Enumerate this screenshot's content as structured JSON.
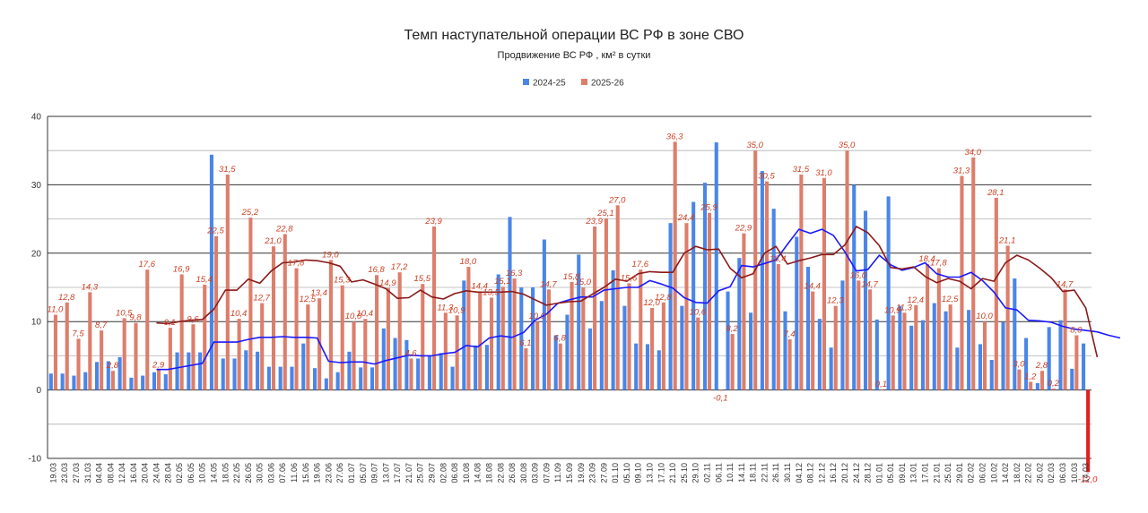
{
  "chart_data": {
    "type": "bar",
    "title": "Темп наступательной операции ВС РФ в зоне СВО",
    "subtitle": "Продвижение ВС РФ , км² в сутки",
    "ylim": [
      -10,
      40
    ],
    "yticks": [
      -10,
      0,
      10,
      20,
      30,
      40
    ],
    "grid": true,
    "legend_position": "top-center",
    "colors": {
      "series1": "#4a86e8",
      "series2": "#dd7e6b",
      "ma1": "#1a1aff",
      "ma2": "#8b1a1a",
      "negative": "#e02020"
    },
    "categories": [
      "19.03",
      "23.03",
      "27.03",
      "31.03",
      "04.04",
      "08.04",
      "12.04",
      "16.04",
      "20.04",
      "24.04",
      "28.04",
      "02.05",
      "06.05",
      "10.05",
      "14.05",
      "18.05",
      "22.05",
      "26.05",
      "30.05",
      "03.06",
      "07.06",
      "11.06",
      "15.06",
      "19.06",
      "23.06",
      "27.06",
      "01.07",
      "05.07",
      "09.07",
      "13.07",
      "17.07",
      "21.07",
      "25.07",
      "29.07",
      "02.08",
      "06.08",
      "10.08",
      "14.08",
      "18.08",
      "22.08",
      "26.08",
      "30.08",
      "03.09",
      "07.09",
      "11.09",
      "15.09",
      "19.09",
      "23.09",
      "27.09",
      "01.10",
      "05.10",
      "09.10",
      "13.10",
      "17.10",
      "21.10",
      "25.10",
      "29.10",
      "02.11",
      "06.11",
      "10.11",
      "14.11",
      "18.11",
      "22.11",
      "26.11",
      "30.11",
      "04.12",
      "08.12",
      "12.12",
      "16.12",
      "20.12",
      "24.12",
      "28.12",
      "01.01",
      "05.01",
      "09.01",
      "13.01",
      "17.01",
      "21.01",
      "25.01",
      "29.01",
      "02.02",
      "06.02",
      "10.02",
      "14.02",
      "18.02",
      "22.02",
      "26.02",
      "02.03",
      "06.03",
      "10.03",
      "14.03"
    ],
    "series": [
      {
        "name": "2024-25",
        "values": [
          2.4,
          2.4,
          2.1,
          2.6,
          4.1,
          4.2,
          4.8,
          1.8,
          2.1,
          2.6,
          2.3,
          5.5,
          5.5,
          5.5,
          34.4,
          4.6,
          4.6,
          5.8,
          5.6,
          3.4,
          3.4,
          3.4,
          6.8,
          3.2,
          1.7,
          2.6,
          5.6,
          3.3,
          3.3,
          9.0,
          7.6,
          7.3,
          4.6,
          5.0,
          5.4,
          3.4,
          16.0,
          6.5,
          6.6,
          16.9,
          25.3,
          15.0,
          15.0,
          22.0,
          8.0,
          11.0,
          19.8,
          9.0,
          13.0,
          17.5,
          12.3,
          6.8,
          6.7,
          5.8,
          24.4,
          12.3,
          27.5,
          30.3,
          36.2,
          14.4,
          19.3,
          11.3,
          32.0,
          26.5,
          11.5,
          22.4,
          18.0,
          10.4,
          6.2,
          16.0,
          30.0,
          26.2,
          10.3,
          28.3,
          12.3,
          9.4,
          10.2,
          12.7,
          11.5,
          6.2,
          11.7,
          6.7,
          4.4,
          9.9,
          16.3,
          7.6,
          1.0,
          9.2,
          10.2,
          3.1,
          6.8
        ]
      },
      {
        "name": "2025-26",
        "values": [
          11.0,
          12.8,
          7.5,
          14.3,
          8.7,
          2.8,
          10.5,
          9.8,
          17.6,
          2.9,
          9.1,
          16.9,
          9.6,
          15.4,
          22.5,
          31.5,
          10.4,
          25.2,
          12.7,
          21.0,
          22.8,
          17.8,
          12.5,
          13.4,
          19.0,
          15.3,
          10.0,
          10.4,
          16.8,
          14.9,
          17.2,
          4.6,
          15.5,
          23.9,
          11.3,
          10.9,
          18.0,
          14.4,
          13.5,
          15.1,
          16.3,
          6.1,
          10.0,
          14.7,
          6.8,
          15.8,
          15.0,
          23.9,
          25.1,
          27.0,
          15.6,
          17.6,
          12.0,
          12.8,
          36.3,
          24.4,
          10.6,
          25.9,
          -0.1,
          8.2,
          22.9,
          35.0,
          30.5,
          18.4,
          7.4,
          31.5,
          14.4,
          31.0,
          12.3,
          35.0,
          16.0,
          14.7,
          0.1,
          10.9,
          11.3,
          12.4,
          18.4,
          17.8,
          12.5,
          31.3,
          34.0,
          10.0,
          28.1,
          21.1,
          3.0,
          1.2,
          2.8,
          0.2,
          14.7,
          8.0,
          -12.0
        ]
      }
    ],
    "moving_averages": [
      {
        "series": "2024-25",
        "start_index": 9,
        "values": [
          3.0,
          3.0,
          3.3,
          3.6,
          3.9,
          7.0,
          7.0,
          7.0,
          7.4,
          7.7,
          7.7,
          7.8,
          7.7,
          7.7,
          7.6,
          4.2,
          4.0,
          4.1,
          4.1,
          3.8,
          4.3,
          4.7,
          5.1,
          5.0,
          5.0,
          5.3,
          5.5,
          6.5,
          6.3,
          7.6,
          7.9,
          7.7,
          8.4,
          10.2,
          11.1,
          12.7,
          13.2,
          13.6,
          13.6,
          14.6,
          14.8,
          15.0,
          15.0,
          16.0,
          15.5,
          14.9,
          13.5,
          12.8,
          12.7,
          14.5,
          15.1,
          18.2,
          18.0,
          18.5,
          19.0,
          21.3,
          23.5,
          22.9,
          23.5,
          22.6,
          20.2,
          17.4,
          17.6,
          19.7,
          18.3,
          17.5,
          17.9,
          18.6,
          17.0,
          16.5,
          16.5,
          17.2,
          16.0,
          14.3,
          12.0,
          11.7,
          10.2,
          10.1,
          9.9,
          9.3,
          8.9,
          8.7,
          8.5,
          8.0,
          7.6
        ]
      },
      {
        "series": "2025-26",
        "start_index": 9,
        "values": [
          9.8,
          9.7,
          10.0,
          10.2,
          10.3,
          11.8,
          14.6,
          14.6,
          16.2,
          15.6,
          17.4,
          18.6,
          18.7,
          19.0,
          18.9,
          18.6,
          18.1,
          15.8,
          16.1,
          15.5,
          14.8,
          13.4,
          13.5,
          14.6,
          13.6,
          13.3,
          14.1,
          14.5,
          14.3,
          14.3,
          14.3,
          14.4,
          14.0,
          13.2,
          12.4,
          12.7,
          12.9,
          13.0,
          14.0,
          15.0,
          16.2,
          15.9,
          17.0,
          17.3,
          17.2,
          17.2,
          20.0,
          21.0,
          20.5,
          20.6,
          17.8,
          16.4,
          17.0,
          20.0,
          21.0,
          18.4,
          18.9,
          19.3,
          19.8,
          19.8,
          21.2,
          23.9,
          23.0,
          21.1,
          17.9,
          17.7,
          18.0,
          16.6,
          15.7,
          16.3,
          15.9,
          14.8,
          16.3,
          15.9,
          18.6,
          19.7,
          19.0,
          17.8,
          16.4,
          14.4,
          14.6,
          12.0,
          4.8
        ]
      }
    ]
  }
}
